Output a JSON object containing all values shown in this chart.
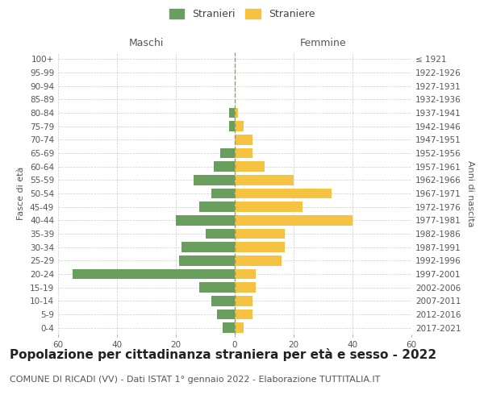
{
  "age_groups": [
    "0-4",
    "5-9",
    "10-14",
    "15-19",
    "20-24",
    "25-29",
    "30-34",
    "35-39",
    "40-44",
    "45-49",
    "50-54",
    "55-59",
    "60-64",
    "65-69",
    "70-74",
    "75-79",
    "80-84",
    "85-89",
    "90-94",
    "95-99",
    "100+"
  ],
  "birth_years": [
    "2017-2021",
    "2012-2016",
    "2007-2011",
    "2002-2006",
    "1997-2001",
    "1992-1996",
    "1987-1991",
    "1982-1986",
    "1977-1981",
    "1972-1976",
    "1967-1971",
    "1962-1966",
    "1957-1961",
    "1952-1956",
    "1947-1951",
    "1942-1946",
    "1937-1941",
    "1932-1936",
    "1927-1931",
    "1922-1926",
    "≤ 1921"
  ],
  "maschi": [
    4,
    6,
    8,
    12,
    55,
    19,
    18,
    10,
    20,
    12,
    8,
    14,
    7,
    5,
    0,
    2,
    2,
    0,
    0,
    0,
    0
  ],
  "femmine": [
    3,
    6,
    6,
    7,
    7,
    16,
    17,
    17,
    40,
    23,
    33,
    20,
    10,
    6,
    6,
    3,
    1,
    0,
    0,
    0,
    0
  ],
  "male_color": "#6a9e5f",
  "female_color": "#f5c242",
  "grid_color": "#cccccc",
  "center_line_color": "#999966",
  "title": "Popolazione per cittadinanza straniera per età e sesso - 2022",
  "subtitle": "COMUNE DI RICADI (VV) - Dati ISTAT 1° gennaio 2022 - Elaborazione TUTTITALIA.IT",
  "ylabel_left": "Fasce di età",
  "ylabel_right": "Anni di nascita",
  "header_left": "Maschi",
  "header_right": "Femmine",
  "legend_male": "Stranieri",
  "legend_female": "Straniere",
  "xlim": 60,
  "background_color": "#ffffff",
  "title_fontsize": 11,
  "subtitle_fontsize": 8,
  "label_fontsize": 8,
  "tick_fontsize": 7.5
}
